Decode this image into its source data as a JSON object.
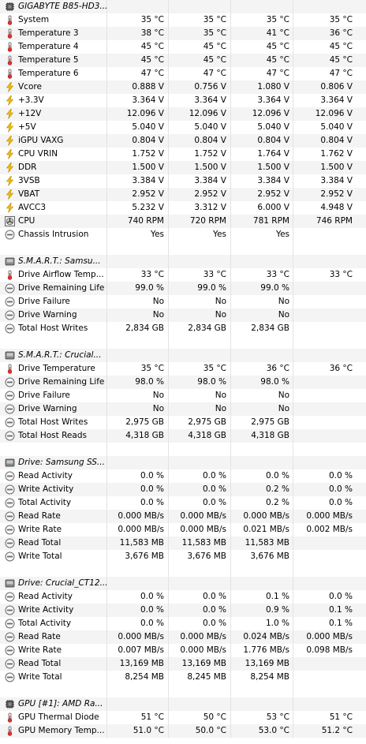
{
  "sections": [
    {
      "title": "GIGABYTE B85-HD3...",
      "icon": "chip-icon",
      "rows": [
        {
          "label": "System",
          "icon": "thermometer-icon",
          "values": [
            "35 °C",
            "35 °C",
            "35 °C",
            "35 °C"
          ]
        },
        {
          "label": "Temperature 3",
          "icon": "thermometer-icon",
          "values": [
            "38 °C",
            "35 °C",
            "41 °C",
            "36 °C"
          ]
        },
        {
          "label": "Temperature 4",
          "icon": "thermometer-icon",
          "values": [
            "45 °C",
            "45 °C",
            "45 °C",
            "45 °C"
          ]
        },
        {
          "label": "Temperature 5",
          "icon": "thermometer-icon",
          "values": [
            "45 °C",
            "45 °C",
            "45 °C",
            "45 °C"
          ]
        },
        {
          "label": "Temperature 6",
          "icon": "thermometer-icon",
          "values": [
            "47 °C",
            "47 °C",
            "47 °C",
            "47 °C"
          ]
        },
        {
          "label": "Vcore",
          "icon": "lightning-icon",
          "values": [
            "0.888 V",
            "0.756 V",
            "1.080 V",
            "0.806 V"
          ]
        },
        {
          "label": "+3.3V",
          "icon": "lightning-icon",
          "values": [
            "3.364 V",
            "3.364 V",
            "3.364 V",
            "3.364 V"
          ]
        },
        {
          "label": "+12V",
          "icon": "lightning-icon",
          "values": [
            "12.096 V",
            "12.096 V",
            "12.096 V",
            "12.096 V"
          ]
        },
        {
          "label": "+5V",
          "icon": "lightning-icon",
          "values": [
            "5.040 V",
            "5.040 V",
            "5.040 V",
            "5.040 V"
          ]
        },
        {
          "label": "iGPU VAXG",
          "icon": "lightning-icon",
          "values": [
            "0.804 V",
            "0.804 V",
            "0.804 V",
            "0.804 V"
          ]
        },
        {
          "label": "CPU VRIN",
          "icon": "lightning-icon",
          "values": [
            "1.752 V",
            "1.752 V",
            "1.764 V",
            "1.762 V"
          ]
        },
        {
          "label": "DDR",
          "icon": "lightning-icon",
          "values": [
            "1.500 V",
            "1.500 V",
            "1.500 V",
            "1.500 V"
          ]
        },
        {
          "label": "3VSB",
          "icon": "lightning-icon",
          "values": [
            "3.384 V",
            "3.384 V",
            "3.384 V",
            "3.384 V"
          ]
        },
        {
          "label": "VBAT",
          "icon": "lightning-icon",
          "values": [
            "2.952 V",
            "2.952 V",
            "2.952 V",
            "2.952 V"
          ]
        },
        {
          "label": "AVCC3",
          "icon": "lightning-icon",
          "values": [
            "5.232 V",
            "3.312 V",
            "6.000 V",
            "4.948 V"
          ]
        },
        {
          "label": "CPU",
          "icon": "fan-icon",
          "values": [
            "740 RPM",
            "720 RPM",
            "781 RPM",
            "746 RPM"
          ]
        },
        {
          "label": "Chassis Intrusion",
          "icon": "gauge-icon",
          "values": [
            "Yes",
            "Yes",
            "Yes",
            ""
          ]
        }
      ]
    },
    {
      "title": "S.M.A.R.T.: Samsu...",
      "icon": "drive-icon",
      "rows": [
        {
          "label": "Drive Airflow Temp...",
          "icon": "thermometer-icon",
          "values": [
            "33 °C",
            "33 °C",
            "33 °C",
            "33 °C"
          ]
        },
        {
          "label": "Drive Remaining Life",
          "icon": "gauge-icon",
          "values": [
            "99.0 %",
            "99.0 %",
            "99.0 %",
            ""
          ]
        },
        {
          "label": "Drive Failure",
          "icon": "gauge-icon",
          "values": [
            "No",
            "No",
            "No",
            ""
          ]
        },
        {
          "label": "Drive Warning",
          "icon": "gauge-icon",
          "values": [
            "No",
            "No",
            "No",
            ""
          ]
        },
        {
          "label": "Total Host Writes",
          "icon": "gauge-icon",
          "values": [
            "2,834 GB",
            "2,834 GB",
            "2,834 GB",
            ""
          ]
        }
      ]
    },
    {
      "title": "S.M.A.R.T.: Crucial...",
      "icon": "drive-icon",
      "rows": [
        {
          "label": "Drive Temperature",
          "icon": "thermometer-icon",
          "values": [
            "35 °C",
            "35 °C",
            "36 °C",
            "36 °C"
          ]
        },
        {
          "label": "Drive Remaining Life",
          "icon": "gauge-icon",
          "values": [
            "98.0 %",
            "98.0 %",
            "98.0 %",
            ""
          ]
        },
        {
          "label": "Drive Failure",
          "icon": "gauge-icon",
          "values": [
            "No",
            "No",
            "No",
            ""
          ]
        },
        {
          "label": "Drive Warning",
          "icon": "gauge-icon",
          "values": [
            "No",
            "No",
            "No",
            ""
          ]
        },
        {
          "label": "Total Host Writes",
          "icon": "gauge-icon",
          "values": [
            "2,975 GB",
            "2,975 GB",
            "2,975 GB",
            ""
          ]
        },
        {
          "label": "Total Host Reads",
          "icon": "gauge-icon",
          "values": [
            "4,318 GB",
            "4,318 GB",
            "4,318 GB",
            ""
          ]
        }
      ]
    },
    {
      "title": "Drive: Samsung SS...",
      "icon": "drive-icon",
      "rows": [
        {
          "label": "Read Activity",
          "icon": "gauge-icon",
          "values": [
            "0.0 %",
            "0.0 %",
            "0.0 %",
            "0.0 %"
          ]
        },
        {
          "label": "Write Activity",
          "icon": "gauge-icon",
          "values": [
            "0.0 %",
            "0.0 %",
            "0.2 %",
            "0.0 %"
          ]
        },
        {
          "label": "Total Activity",
          "icon": "gauge-icon",
          "values": [
            "0.0 %",
            "0.0 %",
            "0.2 %",
            "0.0 %"
          ]
        },
        {
          "label": "Read Rate",
          "icon": "gauge-icon",
          "values": [
            "0.000 MB/s",
            "0.000 MB/s",
            "0.000 MB/s",
            "0.000 MB/s"
          ]
        },
        {
          "label": "Write Rate",
          "icon": "gauge-icon",
          "values": [
            "0.000 MB/s",
            "0.000 MB/s",
            "0.021 MB/s",
            "0.002 MB/s"
          ]
        },
        {
          "label": "Read Total",
          "icon": "gauge-icon",
          "values": [
            "11,583 MB",
            "11,583 MB",
            "11,583 MB",
            ""
          ]
        },
        {
          "label": "Write Total",
          "icon": "gauge-icon",
          "values": [
            "3,676 MB",
            "3,676 MB",
            "3,676 MB",
            ""
          ]
        }
      ]
    },
    {
      "title": "Drive: Crucial_CT12...",
      "icon": "drive-icon",
      "rows": [
        {
          "label": "Read Activity",
          "icon": "gauge-icon",
          "values": [
            "0.0 %",
            "0.0 %",
            "0.1 %",
            "0.0 %"
          ]
        },
        {
          "label": "Write Activity",
          "icon": "gauge-icon",
          "values": [
            "0.0 %",
            "0.0 %",
            "0.9 %",
            "0.1 %"
          ]
        },
        {
          "label": "Total Activity",
          "icon": "gauge-icon",
          "values": [
            "0.0 %",
            "0.0 %",
            "1.0 %",
            "0.1 %"
          ]
        },
        {
          "label": "Read Rate",
          "icon": "gauge-icon",
          "values": [
            "0.000 MB/s",
            "0.000 MB/s",
            "0.024 MB/s",
            "0.000 MB/s"
          ]
        },
        {
          "label": "Write Rate",
          "icon": "gauge-icon",
          "values": [
            "0.007 MB/s",
            "0.000 MB/s",
            "1.776 MB/s",
            "0.098 MB/s"
          ]
        },
        {
          "label": "Read Total",
          "icon": "gauge-icon",
          "values": [
            "13,169 MB",
            "13,169 MB",
            "13,169 MB",
            ""
          ]
        },
        {
          "label": "Write Total",
          "icon": "gauge-icon",
          "values": [
            "8,254 MB",
            "8,245 MB",
            "8,254 MB",
            ""
          ]
        }
      ]
    },
    {
      "title": "GPU [#1]: AMD Ra...",
      "icon": "chip-icon",
      "rows": [
        {
          "label": "GPU Thermal Diode",
          "icon": "thermometer-icon",
          "values": [
            "51 °C",
            "50 °C",
            "53 °C",
            "51 °C"
          ]
        },
        {
          "label": "GPU Memory Temp...",
          "icon": "thermometer-icon",
          "values": [
            "51.0 °C",
            "50.0 °C",
            "53.0 °C",
            "51.2 °C"
          ]
        }
      ]
    }
  ]
}
